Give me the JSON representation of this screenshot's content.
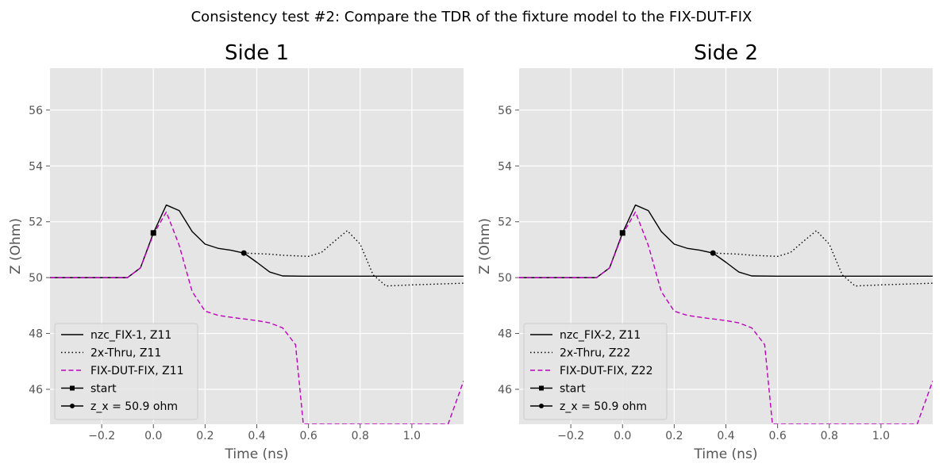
{
  "suptitle": "Consistency test #2: Compare the TDR of the fixture model to the FIX-DUT-FIX",
  "colors": {
    "axes_bg": "#e5e5e5",
    "grid": "#ffffff",
    "black": "#000000",
    "magenta": "#bf00bf",
    "tick_text": "#555555"
  },
  "chart_data": [
    {
      "type": "line",
      "title": "Side 1",
      "xlabel": "Time (ns)",
      "ylabel": "Z (Ohm)",
      "xlim": [
        -0.4,
        1.2
      ],
      "ylim": [
        44.75,
        57.5
      ],
      "xticks": [
        -0.2,
        0.0,
        0.2,
        0.4,
        0.6,
        0.8,
        1.0
      ],
      "xtick_labels": [
        "−0.2",
        "0.0",
        "0.2",
        "0.4",
        "0.6",
        "0.8",
        "1.0"
      ],
      "yticks": [
        46,
        48,
        50,
        52,
        54,
        56
      ],
      "ytick_labels": [
        "46",
        "48",
        "50",
        "52",
        "54",
        "56"
      ],
      "grid": true,
      "legend_position": "lower-left",
      "series": [
        {
          "name": "nzc_FIX-1, Z11",
          "style": "solid",
          "color": "#000000",
          "x": [
            -0.4,
            -0.1,
            -0.05,
            0.0,
            0.05,
            0.1,
            0.15,
            0.2,
            0.25,
            0.3,
            0.35,
            0.4,
            0.45,
            0.5,
            0.6,
            0.8,
            1.0,
            1.2
          ],
          "y": [
            50.0,
            50.0,
            50.35,
            51.6,
            52.6,
            52.4,
            51.65,
            51.2,
            51.05,
            50.98,
            50.88,
            50.55,
            50.2,
            50.06,
            50.05,
            50.05,
            50.05,
            50.05
          ]
        },
        {
          "name": "2x-Thru, Z11",
          "style": "dotted",
          "color": "#000000",
          "x": [
            0.35,
            0.45,
            0.5,
            0.55,
            0.6,
            0.65,
            0.7,
            0.75,
            0.8,
            0.85,
            0.9,
            1.0,
            1.2
          ],
          "y": [
            50.88,
            50.84,
            50.8,
            50.78,
            50.76,
            50.9,
            51.3,
            51.68,
            51.2,
            50.1,
            49.7,
            49.74,
            49.8
          ]
        },
        {
          "name": "FIX-DUT-FIX, Z11",
          "style": "dashed",
          "color": "#bf00bf",
          "x": [
            -0.4,
            -0.1,
            -0.05,
            0.0,
            0.05,
            0.1,
            0.15,
            0.2,
            0.25,
            0.3,
            0.35,
            0.4,
            0.45,
            0.5,
            0.55,
            0.58,
            1.14,
            1.2
          ],
          "y": [
            50.0,
            50.0,
            50.35,
            51.55,
            52.35,
            51.15,
            49.5,
            48.8,
            48.65,
            48.58,
            48.52,
            48.46,
            48.38,
            48.2,
            47.6,
            44.75,
            44.75,
            46.3
          ]
        }
      ],
      "markers": [
        {
          "name": "start",
          "shape": "square",
          "x": 0.0,
          "y": 51.6
        },
        {
          "name": "z_x = 50.9 ohm",
          "shape": "circle",
          "x": 0.35,
          "y": 50.88
        }
      ]
    },
    {
      "type": "line",
      "title": "Side 2",
      "xlabel": "Time (ns)",
      "ylabel": "Z (Ohm)",
      "xlim": [
        -0.4,
        1.2
      ],
      "ylim": [
        44.75,
        57.5
      ],
      "xticks": [
        -0.2,
        0.0,
        0.2,
        0.4,
        0.6,
        0.8,
        1.0
      ],
      "xtick_labels": [
        "−0.2",
        "0.0",
        "0.2",
        "0.4",
        "0.6",
        "0.8",
        "1.0"
      ],
      "yticks": [
        46,
        48,
        50,
        52,
        54,
        56
      ],
      "ytick_labels": [
        "46",
        "48",
        "50",
        "52",
        "54",
        "56"
      ],
      "grid": true,
      "legend_position": "lower-left",
      "series": [
        {
          "name": "nzc_FIX-2, Z11",
          "style": "solid",
          "color": "#000000",
          "x": [
            -0.4,
            -0.1,
            -0.05,
            0.0,
            0.05,
            0.1,
            0.15,
            0.2,
            0.25,
            0.3,
            0.35,
            0.4,
            0.45,
            0.5,
            0.6,
            0.8,
            1.0,
            1.2
          ],
          "y": [
            50.0,
            50.0,
            50.35,
            51.6,
            52.6,
            52.4,
            51.65,
            51.2,
            51.05,
            50.98,
            50.88,
            50.55,
            50.2,
            50.06,
            50.05,
            50.05,
            50.05,
            50.05
          ]
        },
        {
          "name": "2x-Thru, Z22",
          "style": "dotted",
          "color": "#000000",
          "x": [
            0.35,
            0.45,
            0.5,
            0.55,
            0.6,
            0.65,
            0.7,
            0.75,
            0.8,
            0.85,
            0.9,
            1.0,
            1.2
          ],
          "y": [
            50.88,
            50.84,
            50.8,
            50.78,
            50.76,
            50.9,
            51.3,
            51.68,
            51.2,
            50.1,
            49.7,
            49.74,
            49.8
          ]
        },
        {
          "name": "FIX-DUT-FIX, Z22",
          "style": "dashed",
          "color": "#bf00bf",
          "x": [
            -0.4,
            -0.1,
            -0.05,
            0.0,
            0.05,
            0.1,
            0.15,
            0.2,
            0.25,
            0.3,
            0.35,
            0.4,
            0.45,
            0.5,
            0.55,
            0.58,
            1.14,
            1.2
          ],
          "y": [
            50.0,
            50.0,
            50.35,
            51.55,
            52.35,
            51.15,
            49.5,
            48.8,
            48.65,
            48.58,
            48.52,
            48.46,
            48.38,
            48.2,
            47.6,
            44.75,
            44.75,
            46.3
          ]
        }
      ],
      "markers": [
        {
          "name": "start",
          "shape": "square",
          "x": 0.0,
          "y": 51.6
        },
        {
          "name": "z_x = 50.9 ohm",
          "shape": "circle",
          "x": 0.35,
          "y": 50.88
        }
      ]
    }
  ]
}
